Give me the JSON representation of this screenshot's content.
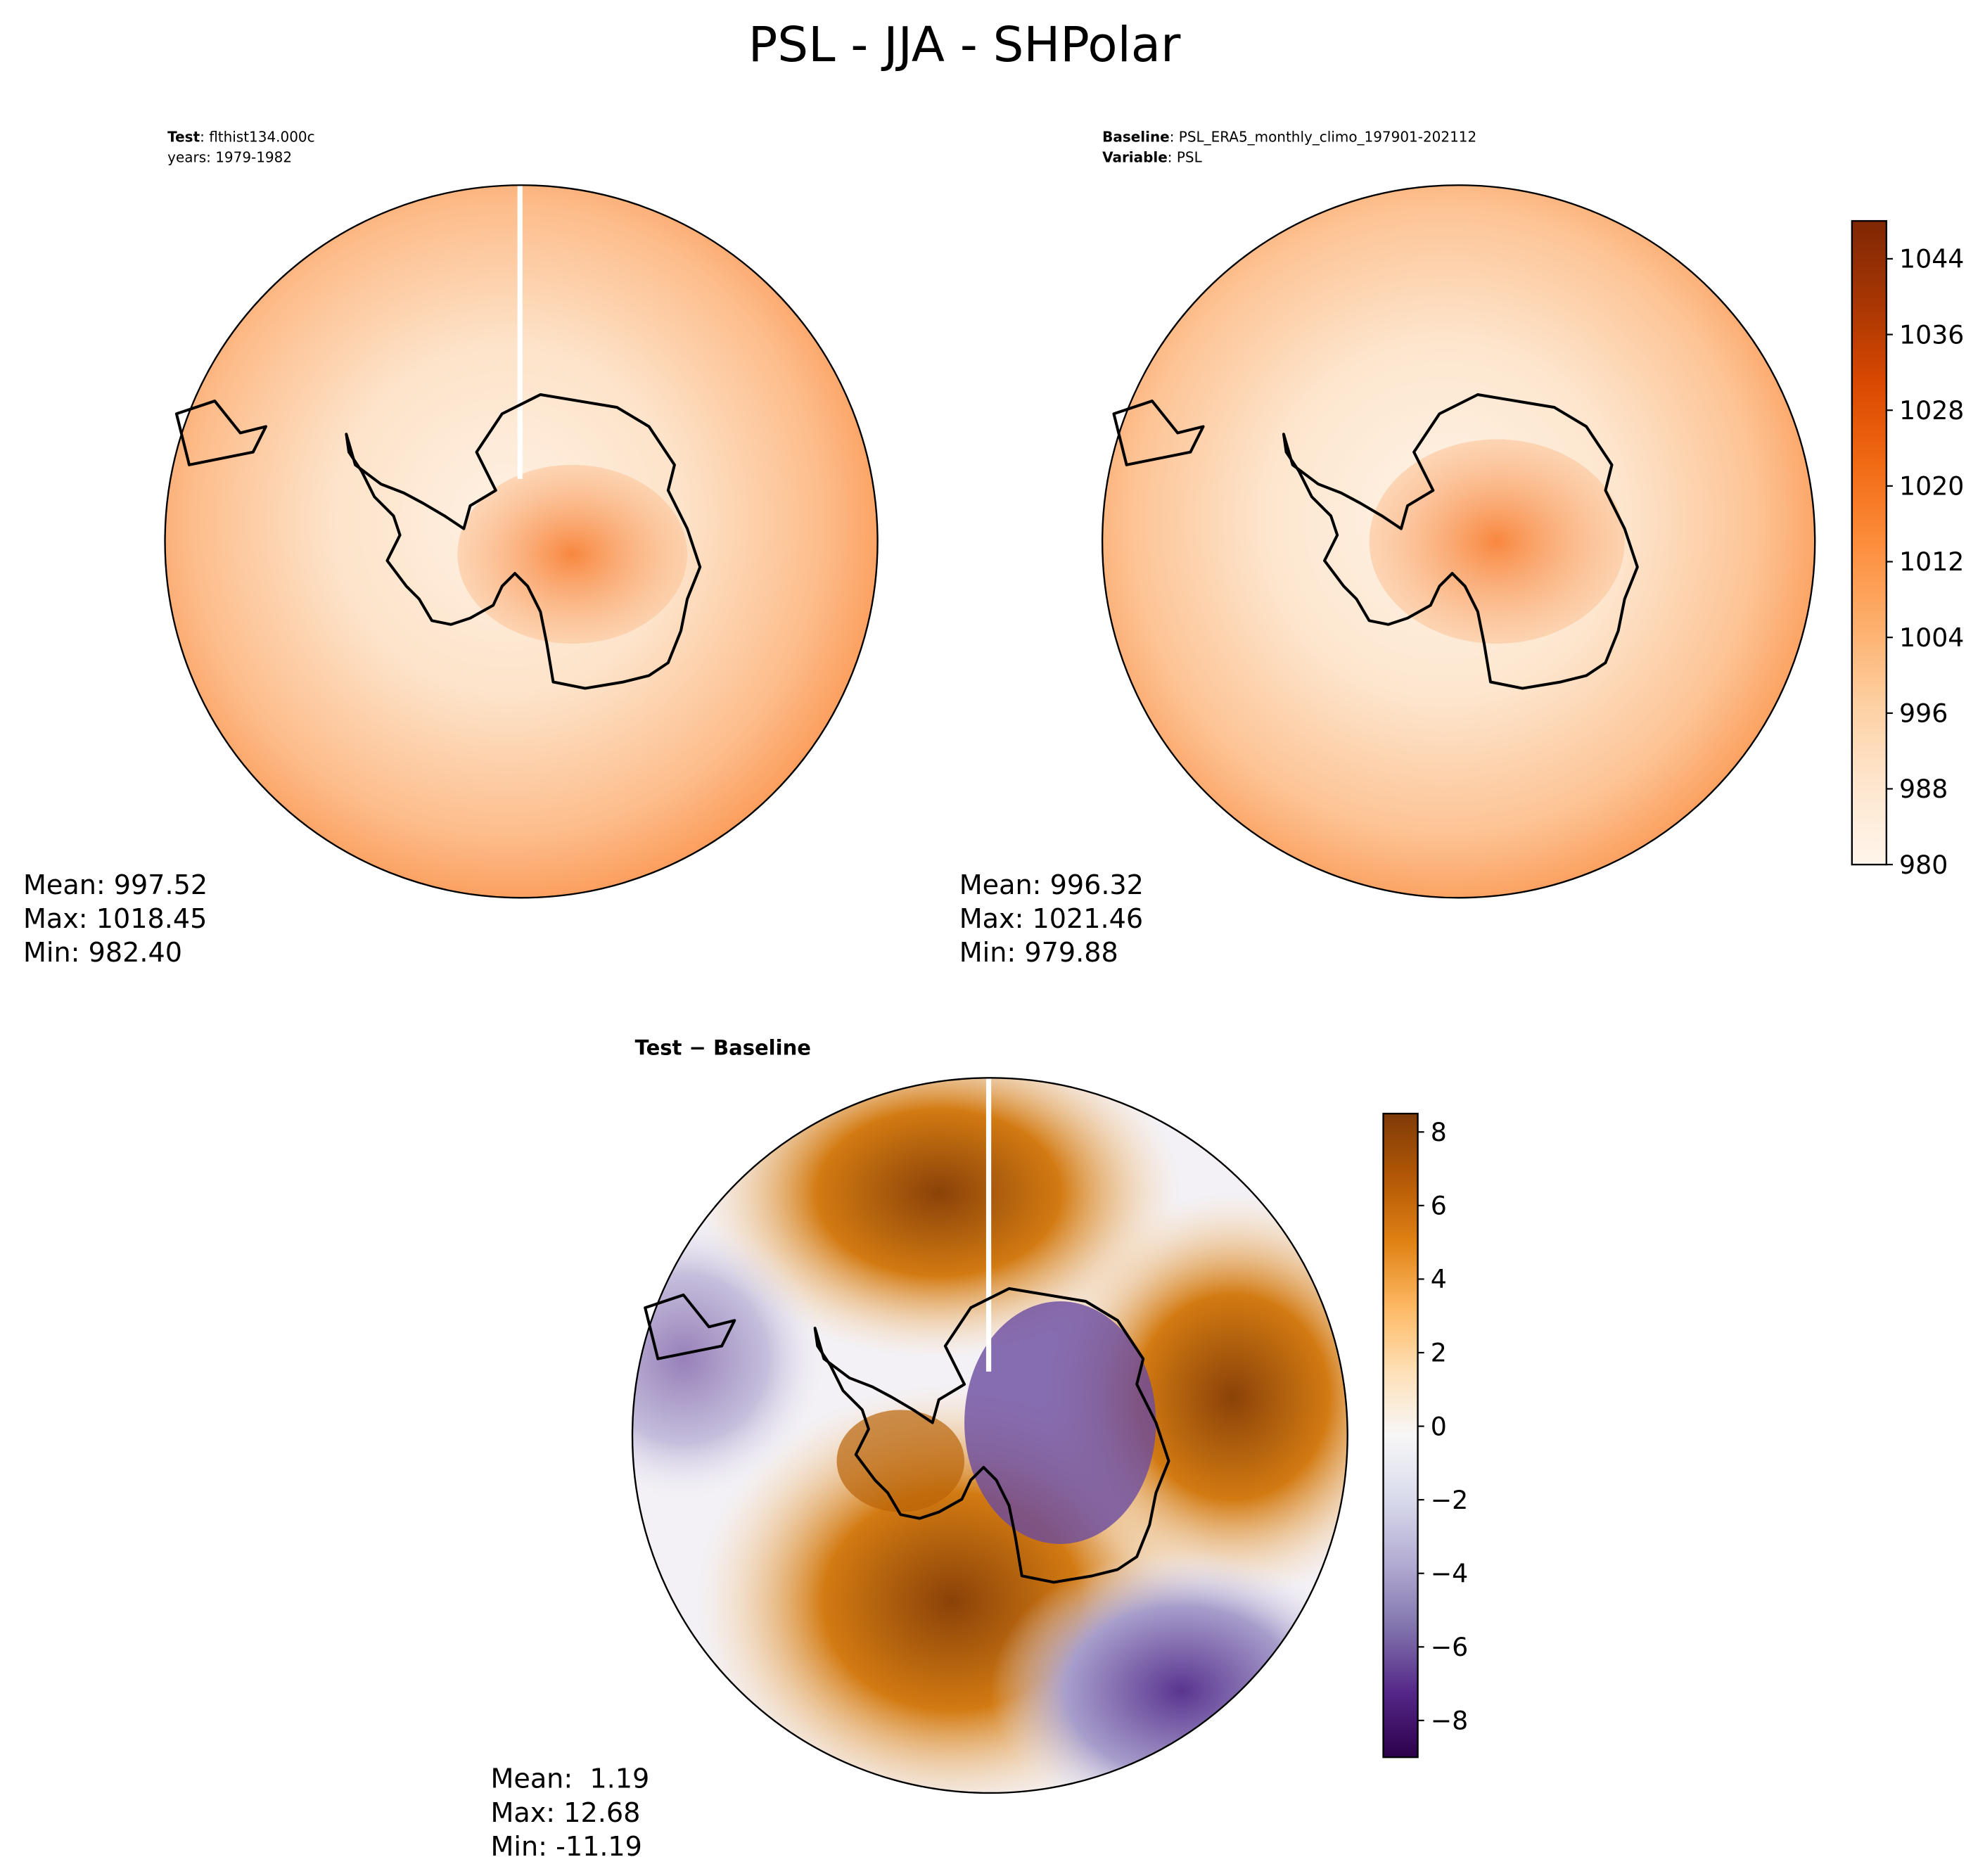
{
  "title": "PSL - JJA - SHPolar",
  "chart_data": [
    {
      "type": "map",
      "header": [
        {
          "key": "Test",
          "text": ": flthist134.000c"
        },
        {
          "text": "years: 1979-1982"
        }
      ],
      "stats": [
        "Mean: 997.52",
        "Max: 1018.45",
        "Min: 982.40"
      ]
    },
    {
      "type": "map",
      "header": [
        {
          "key": "Baseline",
          "text": ": PSL_ERA5_monthly_climo_197901-202112"
        },
        {
          "key": "Variable",
          "text": ": PSL"
        }
      ],
      "stats": [
        "Mean: 996.32",
        "Max: 1021.46",
        "Min: 979.88"
      ],
      "colorbar": {
        "ylim": [
          980,
          1048
        ],
        "yticks": [
          980,
          988,
          996,
          1004,
          1012,
          1020,
          1028,
          1036,
          1044
        ],
        "colors": [
          "#fff5eb",
          "#fee6ce",
          "#fdd0a2",
          "#fdae6b",
          "#fd8d3c",
          "#f16913",
          "#d94801",
          "#a63603",
          "#7f2704"
        ]
      }
    },
    {
      "type": "map",
      "title": "Test − Baseline",
      "stats": [
        "Mean:  1.19",
        "Max: 12.68",
        "Min: -11.19"
      ],
      "colorbar": {
        "ylim": [
          -9,
          8.5
        ],
        "yticks": [
          {
            "value": -8,
            "label": "−8"
          },
          {
            "value": -6,
            "label": "−6"
          },
          {
            "value": -4,
            "label": "−4"
          },
          {
            "value": -2,
            "label": "−2"
          },
          0,
          2,
          4,
          6,
          8
        ],
        "colors": [
          "#2d004b",
          "#542788",
          "#8073ac",
          "#b2abd2",
          "#d8daeb",
          "#f7f7f7",
          "#fee0b6",
          "#fdb863",
          "#e08214",
          "#b35806",
          "#7f3b08"
        ]
      }
    }
  ]
}
